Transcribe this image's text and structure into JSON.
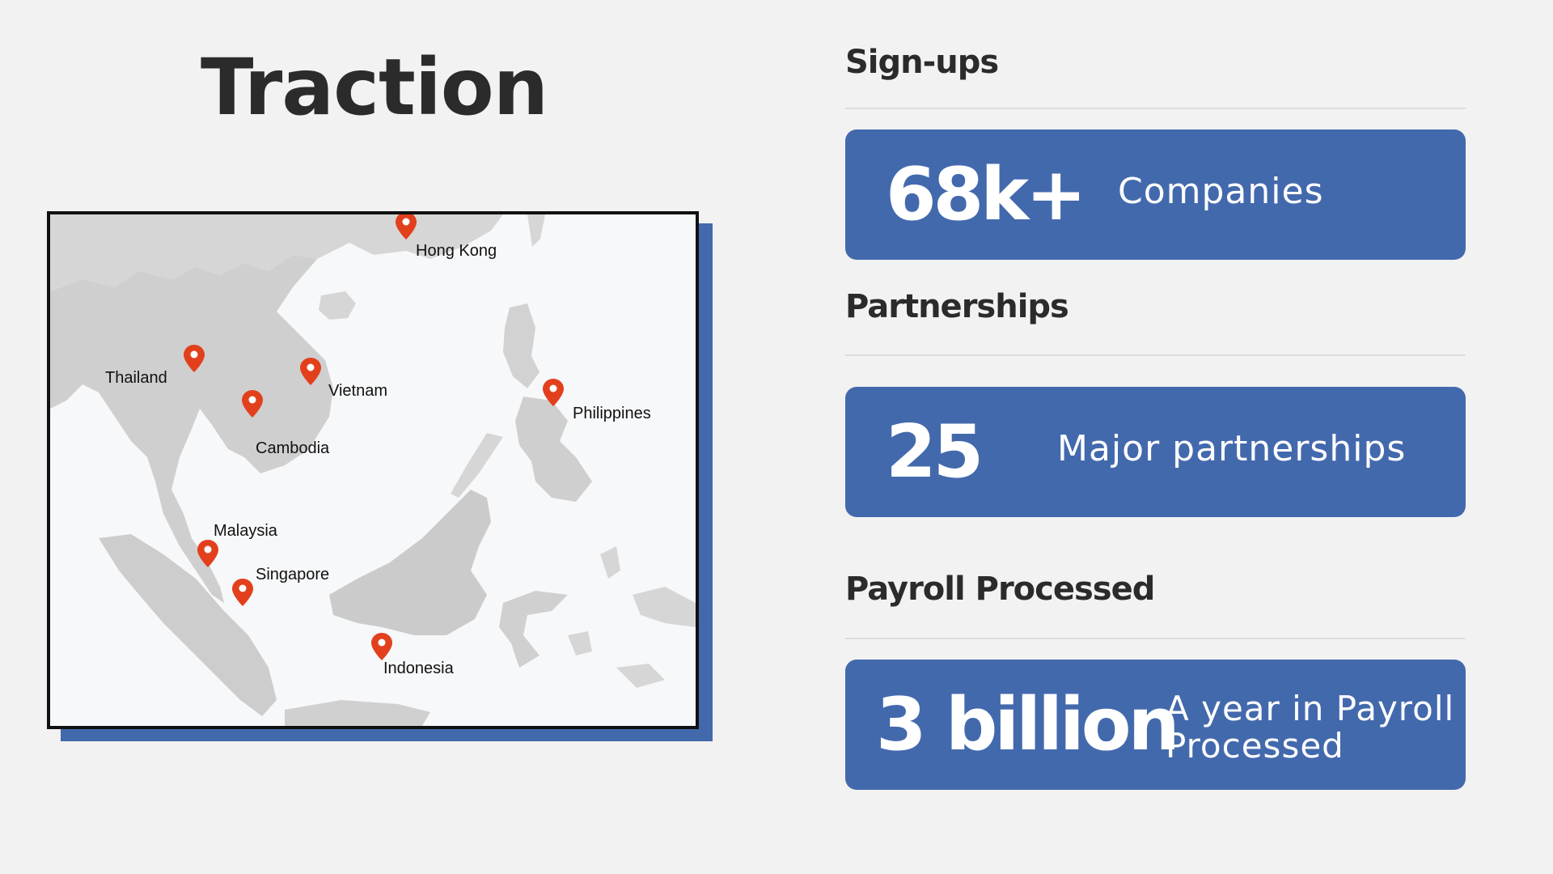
{
  "slide": {
    "title": "Traction"
  },
  "map": {
    "pins": [
      {
        "name": "Hong Kong"
      },
      {
        "name": "Thailand"
      },
      {
        "name": "Vietnam"
      },
      {
        "name": "Cambodia"
      },
      {
        "name": "Philippines"
      },
      {
        "name": "Malaysia"
      },
      {
        "name": "Singapore"
      },
      {
        "name": "Indonesia"
      }
    ],
    "pin_color": "#e2401c",
    "shadow_color": "#4369ad"
  },
  "metrics": [
    {
      "label": "Sign-ups",
      "value": "68k+",
      "description": "Companies"
    },
    {
      "label": "Partnerships",
      "value": "25",
      "description": "Major partnerships"
    },
    {
      "label": "Payroll Processed",
      "value": "3 billion",
      "description_line1": "A year in Payroll",
      "description_line2": "Processed"
    }
  ],
  "colors": {
    "background": "#f2f2f2",
    "card": "#4369ad",
    "text": "#2b2b2b"
  }
}
